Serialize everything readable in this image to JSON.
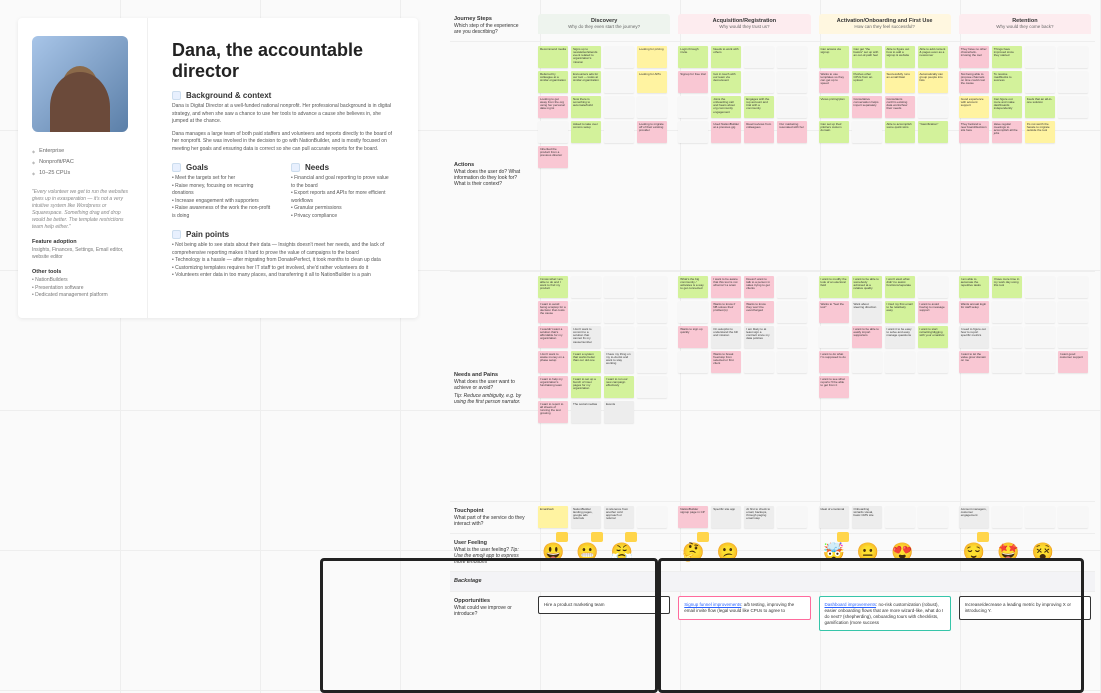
{
  "persona": {
    "title": "Dana, the accountable director",
    "meta": [
      "Enterprise",
      "Nonprofit/PAC",
      "10–25 CPUs"
    ],
    "quote": "\"Every volunteer we get to run the websites gives up in exasperation — it's not a very intuitive system like Wordpress or Squarespace. Something drag and drop would be better. The template restrictions team help either.\"",
    "feature_title": "Feature adoption",
    "feature_body": "Insights, Finances, Settings, Email editor, website editor",
    "other_title": "Other tools",
    "other_items": [
      "NationBuilders",
      "Presentation software",
      "Dedicated management platform"
    ],
    "bg_title": "Background & context",
    "bg_p1": "Dana is Digital Director at a well-funded national nonprofit. Her professional background is in digital strategy, and when she saw a chance to use her tools to advance a cause she believes in, she jumped at the chance.",
    "bg_p2": "Dana manages a large team of both paid staffers and volunteers and reports directly to the board of her nonprofit. She was involved in the decision to go with NationBuilder, and is mostly focused on meeting her goals and ensuring data is correct so she can pull accurate reports for the board.",
    "goals_title": "Goals",
    "goals": [
      "Meet the targets set for her",
      "Raise money, focusing on recurring donations",
      "Increase engagement with supporters",
      "Raise awareness of the work the non-profit is doing"
    ],
    "needs_title": "Needs",
    "needs": [
      "Financial and goal reporting to prove value to the board",
      "Export reports and APIs for more efficient workflows",
      "Granular permissions",
      "Privacy compliance"
    ],
    "pain_title": "Pain points",
    "pains": [
      "Not being able to see stats about their data — Insights doesn't meet her needs, and the lack of comprehensive reporting makes it hard to prove the value of campaigns to the board",
      "Technology is a hassle — after migrating from DonatePerfect, it took months to clean up data",
      "Customizing templates requires her IT staff to get involved, she'd rather volunteers do it",
      "Volunteers enter data in too many places, and transferring it all to NationBuilder is a pain"
    ]
  },
  "columns": [
    {
      "title": "Discovery",
      "sub": "Why do they even start the journey?",
      "bg": "#eef4ee"
    },
    {
      "title": "Acquisition/Registration",
      "sub": "Why would they trust us?",
      "bg": "#fdecef"
    },
    {
      "title": "Activation/Onboarding and First Use",
      "sub": "How can they feel successful?",
      "bg": "#fff7e0"
    },
    {
      "title": "Retention",
      "sub": "Why would they come back?",
      "bg": "#fdecef"
    }
  ],
  "rows": {
    "steps": {
      "title": "Journey Steps",
      "sub": "Which step of the experience are you describing?"
    },
    "actions": {
      "title": "Actions",
      "sub": "What does the user do? What information do they look for? What is their context?"
    },
    "needs": {
      "title": "Needs and Pains",
      "sub": "What does the user want to achieve or avoid?",
      "tip": "Tip: Reduce ambiguity, e.g. by using the first person narrator."
    },
    "touch": {
      "title": "Touchpoint",
      "sub": "What part of the service do they interact with?"
    },
    "feel": {
      "title": "User Feeling",
      "sub": "What is the user feeling?",
      "tip": "Tip: Use the emoji app to express more emotions"
    },
    "back": {
      "title": "Backstage"
    },
    "opp": {
      "title": "Opportunities",
      "sub": "What could we improve or introduce?"
    }
  },
  "colors": {
    "green": "#d3f29b",
    "pink": "#f9c7d3",
    "yellow": "#fff3a1",
    "grey": "#ededed",
    "blank": "#f7f7f7"
  },
  "notes": {
    "actions": {
      "c0": [
        [
          "green",
          "Recommend media"
        ],
        [
          "green",
          "Signs up to newsletter/attends event related to organization's mission"
        ],
        [
          "blank",
          ""
        ],
        [
          "yellow",
          "Looking for pricing"
        ],
        [
          "green",
          "Referred by colleague at a similar organization"
        ],
        [
          "green",
          "Encounters ads for our tool — looks at similar organization"
        ],
        [
          "blank",
          ""
        ],
        [
          "yellow",
          "Looking for APIs"
        ],
        [
          "pink",
          "Looking to get away from the org using her personal data mgmt"
        ],
        [
          "green",
          "Now there is something to automate/build"
        ],
        [
          "blank",
          ""
        ],
        [
          "blank",
          ""
        ],
        [
          "blank",
          ""
        ],
        [
          "green",
          "Asked to take over comms setup"
        ],
        [
          "blank",
          ""
        ],
        [
          "pink",
          "Looking to migrate off of their existing provider"
        ],
        [
          "pink",
          "Inherited the product from a previous director"
        ]
      ],
      "c1": [
        [
          "green",
          "Login through invite"
        ],
        [
          "green",
          "Needs to work with others"
        ],
        [
          "blank",
          ""
        ],
        [
          "blank",
          ""
        ],
        [
          "pink",
          "Signup for free trial"
        ],
        [
          "green",
          "Got in touch with our team via demo/event"
        ],
        [
          "blank",
          ""
        ],
        [
          "blank",
          ""
        ],
        [
          "blank",
          ""
        ],
        [
          "green",
          "Joins the onboarding call and hears about org community engagement"
        ],
        [
          "green",
          "Engages with the rep account and trial with a community"
        ],
        [
          "blank",
          ""
        ],
        [
          "blank",
          ""
        ],
        [
          "pink",
          "Used NationBuilder at a previous gig"
        ],
        [
          "pink",
          "Read reviews from colleagues"
        ],
        [
          "pink",
          "Our marketing resonated with her"
        ]
      ],
      "c2": [
        [
          "green",
          "Can access via signup"
        ],
        [
          "green",
          "Can get \"the basics\" set up with an out-of-path feel"
        ],
        [
          "green",
          "Able to figure out how to add a signup & website"
        ],
        [
          "green",
          "Able to add content & pages even as a newcomer"
        ],
        [
          "pink",
          "Wants to use templates so they can get up to speed"
        ],
        [
          "green",
          "Pushes other CPUs from an upload"
        ],
        [
          "yellow",
          "Successfully runs an email blast"
        ],
        [
          "yellow",
          "Automatically can group people into lists"
        ],
        [
          "green",
          "Views pricing/plan"
        ],
        [
          "pink",
          "Consultative conversation helps import separately"
        ],
        [
          "pink",
          "Consultants confirm existing data works/how their needs"
        ],
        [
          "blank",
          ""
        ],
        [
          "green",
          "Can set up their pilot/ers custom domain"
        ],
        [
          "blank",
          ""
        ],
        [
          "green",
          "Able to accomplish some quick wins"
        ],
        [
          "green",
          "\"Gamification\""
        ]
      ],
      "c3": [
        [
          "pink",
          "They have no other choice/lock-in/using the tool"
        ],
        [
          "green",
          "Things have improved since they started"
        ],
        [
          "blank",
          ""
        ],
        [
          "blank",
          ""
        ],
        [
          "pink",
          "Not being able to propose channels on time could cost the cause"
        ],
        [
          "green",
          "To resolve roadblocks to success"
        ],
        [
          "blank",
          ""
        ],
        [
          "blank",
          ""
        ],
        [
          "yellow",
          "Good experience with account support"
        ],
        [
          "green",
          "Can figure out more and make dashboards independently"
        ],
        [
          "green",
          "Feels that an all-in-one solution"
        ],
        [
          "blank",
          ""
        ],
        [
          "pink",
          "They bet/and a new board/decision sits here"
        ],
        [
          "pink",
          "Have regular meetings to accomplish all the jobs"
        ],
        [
          "yellow",
          "It's not worth the hassle to migrate outside the tool"
        ]
      ]
    },
    "needs": {
      "c0": [
        [
          "green",
          "I know what I am able to do and I want to find my product"
        ],
        [
          "blank",
          ""
        ],
        [
          "blank",
          ""
        ],
        [
          "blank",
          ""
        ],
        [
          "pink",
          "I want to avoid being a laptop for a decision that costs the cause"
        ],
        [
          "blank",
          ""
        ],
        [
          "blank",
          ""
        ],
        [
          "blank",
          ""
        ],
        [
          "pink",
          "I wouldn't want a solution that's affordable for my organization"
        ],
        [
          "grey",
          "I don't want to commit to a solution that cannot fix my cause/number"
        ],
        [
          "blank",
          ""
        ],
        [
          "blank",
          ""
        ],
        [
          "pink",
          "I don't want to waste money on a phase setup"
        ],
        [
          "green",
          "I want a system that works better than our old one"
        ],
        [
          "grey",
          "I have my thing on my to-do-list and want to stay working"
        ],
        [
          "blank",
          ""
        ],
        [
          "pink",
          "I want to help my organization's fundraising team"
        ],
        [
          "green",
          "I want to set up a bunch of inset pages for my organization"
        ],
        [
          "green",
          "I want to run our new campaign effectively"
        ],
        [
          "blank",
          ""
        ],
        [
          "pink",
          "I want to report to all sheets of running the test growing"
        ],
        [
          "grey",
          "The social medias"
        ],
        [
          "grey",
          "Events"
        ]
      ],
      "c1": [
        [
          "green",
          "What's the big community / activates is a way to get connected"
        ],
        [
          "pink",
          "I want to be aware that this tool is not what isn't a scam"
        ],
        [
          "pink",
          "Doesn't want to talk to a person in sales trying to get clients"
        ],
        [
          "blank",
          ""
        ],
        [
          "blank",
          ""
        ],
        [
          "pink",
          "Wants to know if NB solves their problem(s)"
        ],
        [
          "pink",
          "Wants to know they won't be overcharged"
        ],
        [
          "blank",
          ""
        ],
        [
          "pink",
          "Wants to sign up quickly"
        ],
        [
          "grey",
          "On autopilot to understand the bill and mission"
        ],
        [
          "grey",
          "I am likely to at least sign a contract since my data policies"
        ],
        [
          "blank",
          ""
        ],
        [
          "blank",
          ""
        ],
        [
          "pink",
          "Wants to break free/stop from selected or first client"
        ],
        [
          "blank",
          ""
        ],
        [
          "blank",
          ""
        ]
      ],
      "c2": [
        [
          "green",
          "I want to modify the look of an electoral field"
        ],
        [
          "green",
          "I want to be able to somebody admined at a relative quality"
        ],
        [
          "green",
          "I won't elect what didn't to assist functions/separate"
        ],
        [
          "blank",
          ""
        ],
        [
          "pink",
          "Wants to \"feel the tool\""
        ],
        [
          "grey",
          "Want about steering direction"
        ],
        [
          "green",
          "I tried my first email to be relatively easy"
        ],
        [
          "pink",
          "I want to avoid having to message support"
        ],
        [
          "blank",
          ""
        ],
        [
          "pink",
          "I want to be able to easily import supporters"
        ],
        [
          "grey",
          "I want it to be easy to solve and easy manage questions"
        ],
        [
          "green",
          "I want to start retracting/digging with your email/etc"
        ],
        [
          "pink",
          "I want to do what I'm supposed to do"
        ],
        [
          "blank",
          ""
        ],
        [
          "blank",
          ""
        ],
        [
          "blank",
          ""
        ],
        [
          "pink",
          "I want to see what reports I'll be able to get from it"
        ]
      ],
      "c3": [
        [
          "green",
          "I am able to automate the repetitive tasks"
        ],
        [
          "green",
          "I have more time in my work day using this tool"
        ],
        [
          "blank",
          ""
        ],
        [
          "blank",
          ""
        ],
        [
          "pink",
          "Wants annual login for staff setup"
        ],
        [
          "blank",
          ""
        ],
        [
          "blank",
          ""
        ],
        [
          "blank",
          ""
        ],
        [
          "grey",
          "I need to figure out how to report specific metrics"
        ],
        [
          "blank",
          ""
        ],
        [
          "blank",
          ""
        ],
        [
          "blank",
          ""
        ],
        [
          "pink",
          "I want to let the value grow domain on me"
        ],
        [
          "blank",
          ""
        ],
        [
          "blank",
          ""
        ],
        [
          "pink",
          "I want good customer support"
        ]
      ]
    },
    "touch": {
      "c0": [
        [
          "yellow",
          "Email/web"
        ],
        [
          "grey",
          "NationBuilder landing pages, google ads referrals"
        ],
        [
          "grey",
          "A reference from another cold approach or referral"
        ],
        [
          "blank",
          ""
        ]
      ],
      "c1": [
        [
          "pink",
          "NationBuilder signup page in CP"
        ],
        [
          "grey",
          "Specific site app"
        ],
        [
          "grey",
          "At first to check to email, backups, through paging email step"
        ],
        [
          "blank",
          ""
        ]
      ],
      "c2": [
        [
          "grey",
          "Ideal of emotional"
        ],
        [
          "grey",
          "Onboarding wizards visual, basic CMS site"
        ],
        [
          "blank",
          ""
        ],
        [
          "blank",
          ""
        ]
      ],
      "c3": [
        [
          "grey",
          "Account managers, customer engagement"
        ],
        [
          "blank",
          ""
        ],
        [
          "blank",
          ""
        ],
        [
          "blank",
          ""
        ]
      ]
    }
  },
  "emojis": {
    "c0": [
      "😃",
      "😬",
      "😤"
    ],
    "c1": [
      "🤔",
      "😕"
    ],
    "c2": [
      "🤯",
      "😐",
      "😍"
    ],
    "c3": [
      "😌",
      "🤩",
      "😵"
    ]
  },
  "opps": {
    "c0": {
      "text": "Hire a product marketing team",
      "border": "#333"
    },
    "c1": {
      "link": "Signup funnel improvements",
      "text": ": a/b testing, improving the email invite flow (legal would like CPUs to agree to",
      "border": "#ff6b9d"
    },
    "c2": {
      "link": "Dashboard improvements",
      "text": ": no-risk customization (robust), easier onboarding flows that are more wizard-like, what do I do next? (shepherding), onboarding tours with checklists, gamification (more success",
      "border": "#36c5a9"
    },
    "c3": {
      "text": "Increase/decrease a leading metric by improving X or introducing Y.",
      "border": "#333"
    }
  }
}
